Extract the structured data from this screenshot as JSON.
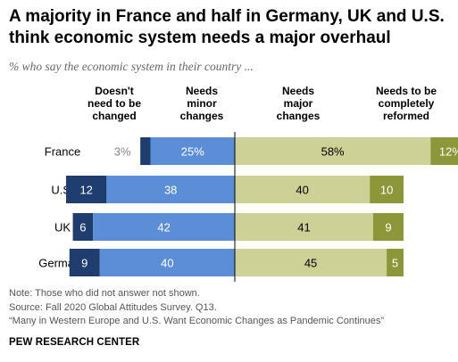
{
  "title": "A majority in France and half in Germany, UK and U.S. think economic system needs a major overhaul",
  "subtitle": "% who say the economic system in their country ...",
  "chart_data": {
    "type": "bar",
    "orientation": "horizontal",
    "stacked": "diverging",
    "categories": [
      "France",
      "U.S.",
      "UK",
      "Germany"
    ],
    "series": [
      {
        "name": "Doesn't need to be changed",
        "values": [
          3,
          12,
          6,
          9
        ],
        "labels": [
          "3%",
          "12",
          "6",
          "9"
        ],
        "color": "#1f3d6e",
        "side": "left"
      },
      {
        "name": "Needs minor changes",
        "values": [
          25,
          38,
          42,
          40
        ],
        "labels": [
          "25%",
          "38",
          "42",
          "40"
        ],
        "color": "#5b8ed6",
        "side": "left"
      },
      {
        "name": "Needs major changes",
        "values": [
          58,
          40,
          41,
          45
        ],
        "labels": [
          "58%",
          "40",
          "41",
          "45"
        ],
        "color": "#cdd196",
        "side": "right"
      },
      {
        "name": "Needs to be completely reformed",
        "values": [
          12,
          10,
          9,
          5
        ],
        "labels": [
          "12%",
          "10",
          "9",
          "5"
        ],
        "color": "#8c973a",
        "side": "right"
      }
    ],
    "headers": [
      [
        "Doesn't",
        "need to be",
        "changed"
      ],
      [
        "Needs",
        "minor",
        "changes"
      ],
      [
        "Needs",
        "major",
        "changes"
      ],
      [
        "Needs to be",
        "completely",
        "reformed"
      ]
    ],
    "grid": false,
    "legend": "top"
  },
  "notes": {
    "note": "Note: Those who did not answer not shown.",
    "source": "Source: Fall 2020 Global Attitudes Survey. Q13.",
    "report": "“Many in Western Europe and U.S. Want Economic Changes as Pandemic Continues”"
  },
  "brand": "PEW RESEARCH CENTER"
}
